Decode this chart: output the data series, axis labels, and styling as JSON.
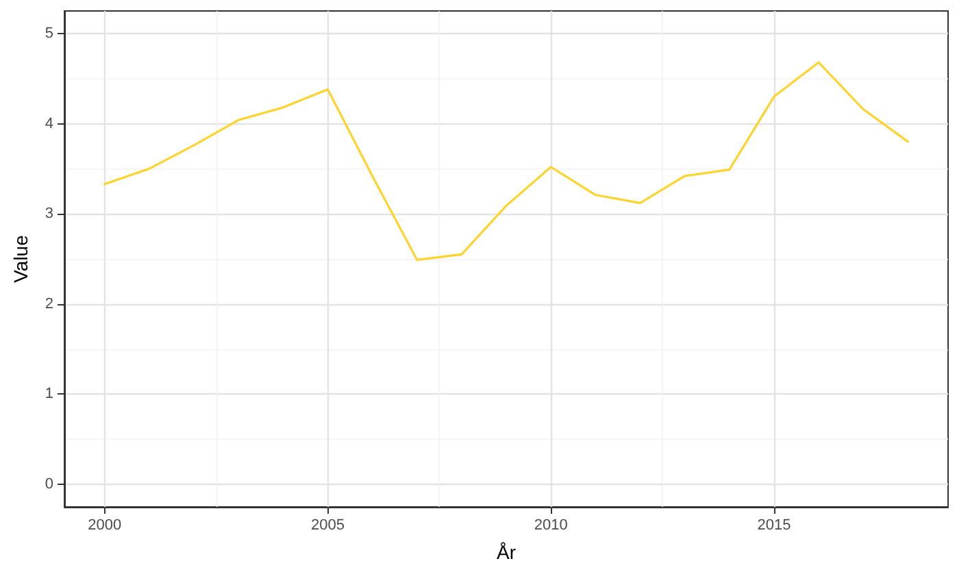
{
  "chart_data": {
    "type": "line",
    "xlabel": "År",
    "ylabel": "Value",
    "x": [
      2000,
      2001,
      2002,
      2003,
      2004,
      2005,
      2006,
      2007,
      2008,
      2009,
      2010,
      2011,
      2012,
      2013,
      2014,
      2015,
      2016,
      2017,
      2018
    ],
    "series": [
      {
        "color": "#fdd32e",
        "values": [
          3.33,
          3.5,
          3.76,
          4.04,
          4.18,
          4.38,
          3.42,
          2.49,
          2.55,
          3.09,
          3.52,
          3.21,
          3.12,
          3.42,
          3.49,
          4.3,
          4.68,
          4.16,
          3.8
        ]
      }
    ],
    "xlim": [
      1999.1,
      2018.9
    ],
    "xticks": [
      2000,
      2005,
      2010,
      2015
    ],
    "ylim": [
      -0.25,
      5.25
    ],
    "yticks": [
      0,
      1,
      2,
      3,
      4,
      5
    ],
    "grid": true,
    "marker": "none",
    "line_style": "solid"
  }
}
